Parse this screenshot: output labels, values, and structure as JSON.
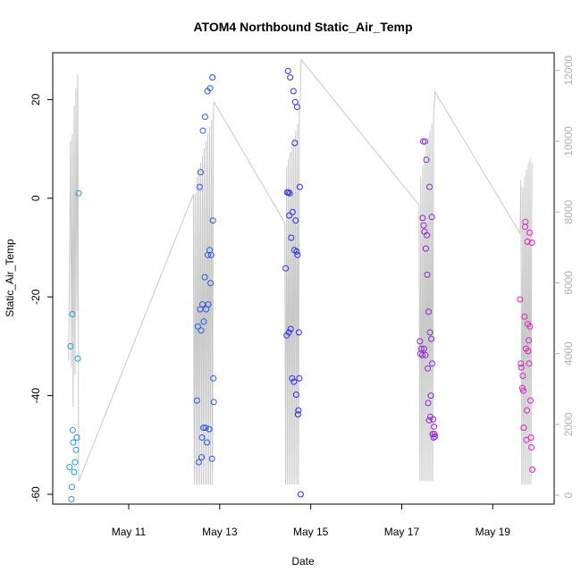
{
  "chart_data": {
    "type": "scatter",
    "title": "ATOM4 Northbound Static_Air_Temp",
    "xlabel": "Date",
    "ylabel": "Static_Air_Temp",
    "x_ticks": [
      {
        "label": "May 11",
        "day": 11
      },
      {
        "label": "May 13",
        "day": 13
      },
      {
        "label": "May 15",
        "day": 15
      },
      {
        "label": "May 17",
        "day": 17
      },
      {
        "label": "May 19",
        "day": 19
      }
    ],
    "xlim": [
      9.33,
      20.35
    ],
    "ylim": [
      -62,
      29.5
    ],
    "y_ticks": [
      -60,
      -40,
      -20,
      0,
      20
    ],
    "y2lim": [
      -250,
      12500
    ],
    "y2_ticks": [
      0,
      2000,
      4000,
      6000,
      8000,
      10000,
      12000
    ],
    "y2_label": "",
    "grid": false,
    "legend": "none",
    "colors": {
      "points_start": "#1e9ee0",
      "points_mid": "#2a2ae8",
      "points_end": "#e020c0",
      "altitude_line": "#c8c8c8",
      "right_axis": "#b0b0b0"
    },
    "series": [
      {
        "type": "scatter",
        "points": [
          [
            9.7,
            -54.5
          ],
          [
            9.72,
            -30.0
          ],
          [
            9.74,
            -61.0
          ],
          [
            9.75,
            -58.5
          ],
          [
            9.76,
            -23.5
          ],
          [
            9.77,
            -47.0
          ],
          [
            9.78,
            -49.5
          ],
          [
            9.8,
            -55.5
          ],
          [
            9.82,
            -53.5
          ],
          [
            9.84,
            -51.0
          ],
          [
            9.86,
            -48.5
          ],
          [
            9.88,
            -32.5
          ],
          [
            9.9,
            1.0
          ],
          [
            12.5,
            -41.0
          ],
          [
            12.52,
            -26.0
          ],
          [
            12.54,
            -53.5
          ],
          [
            12.56,
            2.3
          ],
          [
            12.57,
            -22.5
          ],
          [
            12.58,
            5.3
          ],
          [
            12.59,
            -26.8
          ],
          [
            12.6,
            -52.5
          ],
          [
            12.61,
            -48.5
          ],
          [
            12.62,
            -21.5
          ],
          [
            12.63,
            13.7
          ],
          [
            12.64,
            -46.5
          ],
          [
            12.65,
            -25.0
          ],
          [
            12.67,
            -16.0
          ],
          [
            12.68,
            16.5
          ],
          [
            12.69,
            -46.5
          ],
          [
            12.7,
            -22.5
          ],
          [
            12.72,
            -49.5
          ],
          [
            12.73,
            21.7
          ],
          [
            12.74,
            -11.5
          ],
          [
            12.75,
            -21.5
          ],
          [
            12.77,
            -46.8
          ],
          [
            12.78,
            -10.5
          ],
          [
            12.79,
            22.3
          ],
          [
            12.8,
            -17.2
          ],
          [
            12.81,
            -11.5
          ],
          [
            12.83,
            -52.8
          ],
          [
            12.84,
            24.5
          ],
          [
            12.85,
            -4.5
          ],
          [
            12.86,
            -36.5
          ],
          [
            12.87,
            -41.3
          ],
          [
            14.45,
            -14.2
          ],
          [
            14.47,
            -27.8
          ],
          [
            14.48,
            1.2
          ],
          [
            14.5,
            25.8
          ],
          [
            14.51,
            1.2
          ],
          [
            14.52,
            -27.2
          ],
          [
            14.53,
            -3.5
          ],
          [
            14.54,
            1.0
          ],
          [
            14.55,
            24.5
          ],
          [
            14.56,
            -26.5
          ],
          [
            14.57,
            -8.0
          ],
          [
            14.59,
            -36.5
          ],
          [
            14.6,
            -2.8
          ],
          [
            14.62,
            21.7
          ],
          [
            14.63,
            -37.2
          ],
          [
            14.64,
            -10.5
          ],
          [
            14.65,
            11.2
          ],
          [
            14.66,
            19.5
          ],
          [
            14.67,
            -4.5
          ],
          [
            14.68,
            -39.8
          ],
          [
            14.69,
            -10.8
          ],
          [
            14.7,
            18.5
          ],
          [
            14.71,
            -11.5
          ],
          [
            14.72,
            -43.8
          ],
          [
            14.73,
            -43.0
          ],
          [
            14.74,
            -27.2
          ],
          [
            14.75,
            -36.5
          ],
          [
            14.76,
            2.3
          ],
          [
            14.78,
            -60.0
          ],
          [
            17.4,
            -29.0
          ],
          [
            17.41,
            -31.5
          ],
          [
            17.43,
            -30.5
          ],
          [
            17.45,
            -31.8
          ],
          [
            17.46,
            -4.0
          ],
          [
            17.47,
            11.5
          ],
          [
            17.48,
            -5.5
          ],
          [
            17.49,
            -30.5
          ],
          [
            17.5,
            -6.8
          ],
          [
            17.51,
            11.5
          ],
          [
            17.52,
            -31.8
          ],
          [
            17.53,
            -10.2
          ],
          [
            17.54,
            7.8
          ],
          [
            17.55,
            -7.5
          ],
          [
            17.56,
            -15.5
          ],
          [
            17.57,
            -34.5
          ],
          [
            17.58,
            -41.5
          ],
          [
            17.59,
            -23.0
          ],
          [
            17.6,
            -45.0
          ],
          [
            17.61,
            2.3
          ],
          [
            17.62,
            -27.2
          ],
          [
            17.63,
            -44.3
          ],
          [
            17.64,
            -40.0
          ],
          [
            17.65,
            -28.5
          ],
          [
            17.66,
            -3.8
          ],
          [
            17.67,
            -33.5
          ],
          [
            17.68,
            -47.8
          ],
          [
            17.69,
            -44.8
          ],
          [
            17.7,
            -48.5
          ],
          [
            17.71,
            -46.3
          ],
          [
            17.72,
            -47.8
          ],
          [
            17.73,
            -48.3
          ],
          [
            19.6,
            -20.5
          ],
          [
            19.62,
            -33.5
          ],
          [
            19.63,
            -34.3
          ],
          [
            19.65,
            -38.5
          ],
          [
            19.66,
            -36.0
          ],
          [
            19.67,
            -39.0
          ],
          [
            19.68,
            -46.5
          ],
          [
            19.7,
            -24.0
          ],
          [
            19.71,
            -5.8
          ],
          [
            19.72,
            -4.8
          ],
          [
            19.73,
            -30.5
          ],
          [
            19.74,
            -49.0
          ],
          [
            19.75,
            -43.0
          ],
          [
            19.76,
            -8.8
          ],
          [
            19.77,
            -25.5
          ],
          [
            19.78,
            -31.0
          ],
          [
            19.79,
            -28.8
          ],
          [
            19.8,
            -33.5
          ],
          [
            19.81,
            -7.0
          ],
          [
            19.82,
            -26.0
          ],
          [
            19.83,
            -41.0
          ],
          [
            19.84,
            -48.5
          ],
          [
            19.85,
            -50.5
          ],
          [
            19.86,
            -9.0
          ],
          [
            19.87,
            -55.0
          ]
        ]
      },
      {
        "type": "line",
        "axis": "right",
        "points": [
          [
            9.68,
            3800
          ],
          [
            9.72,
            10000
          ],
          [
            9.74,
            3600
          ],
          [
            9.76,
            10200
          ],
          [
            9.78,
            2500
          ],
          [
            9.8,
            11000
          ],
          [
            9.82,
            3400
          ],
          [
            9.84,
            11500
          ],
          [
            9.86,
            5200
          ],
          [
            9.88,
            11900
          ],
          [
            9.9,
            400
          ],
          [
            12.42,
            8500
          ],
          [
            12.44,
            300
          ],
          [
            12.46,
            8500
          ],
          [
            12.48,
            300
          ],
          [
            12.5,
            9000
          ],
          [
            12.52,
            300
          ],
          [
            12.54,
            9200
          ],
          [
            12.56,
            300
          ],
          [
            12.58,
            9400
          ],
          [
            12.6,
            300
          ],
          [
            12.62,
            9600
          ],
          [
            12.64,
            300
          ],
          [
            12.66,
            9800
          ],
          [
            12.68,
            300
          ],
          [
            12.7,
            10000
          ],
          [
            12.72,
            300
          ],
          [
            12.74,
            10200
          ],
          [
            12.76,
            300
          ],
          [
            12.78,
            10400
          ],
          [
            12.8,
            300
          ],
          [
            12.82,
            10600
          ],
          [
            12.84,
            300
          ],
          [
            12.86,
            10800
          ],
          [
            12.88,
            11100
          ],
          [
            14.43,
            7700
          ],
          [
            14.45,
            300
          ],
          [
            14.47,
            9300
          ],
          [
            14.49,
            300
          ],
          [
            14.51,
            9500
          ],
          [
            14.53,
            300
          ],
          [
            14.55,
            9700
          ],
          [
            14.57,
            300
          ],
          [
            14.59,
            9900
          ],
          [
            14.61,
            300
          ],
          [
            14.63,
            10100
          ],
          [
            14.65,
            300
          ],
          [
            14.67,
            10300
          ],
          [
            14.69,
            300
          ],
          [
            14.71,
            10500
          ],
          [
            14.73,
            300
          ],
          [
            14.75,
            10800
          ],
          [
            14.77,
            11200
          ],
          [
            14.79,
            12300
          ],
          [
            17.38,
            8200
          ],
          [
            17.4,
            400
          ],
          [
            17.42,
            9000
          ],
          [
            17.44,
            400
          ],
          [
            17.46,
            9300
          ],
          [
            17.48,
            400
          ],
          [
            17.5,
            9600
          ],
          [
            17.52,
            400
          ],
          [
            17.54,
            9900
          ],
          [
            17.56,
            400
          ],
          [
            17.58,
            10100
          ],
          [
            17.6,
            400
          ],
          [
            17.62,
            10300
          ],
          [
            17.64,
            400
          ],
          [
            17.66,
            10500
          ],
          [
            17.68,
            400
          ],
          [
            17.7,
            10700
          ],
          [
            17.73,
            11400
          ],
          [
            19.6,
            7400
          ],
          [
            19.62,
            8900
          ],
          [
            19.64,
            300
          ],
          [
            19.66,
            8700
          ],
          [
            19.68,
            300
          ],
          [
            19.7,
            9000
          ],
          [
            19.72,
            300
          ],
          [
            19.74,
            9200
          ],
          [
            19.76,
            300
          ],
          [
            19.78,
            9400
          ],
          [
            19.8,
            300
          ],
          [
            19.82,
            9500
          ],
          [
            19.84,
            300
          ],
          [
            19.86,
            9400
          ]
        ]
      }
    ]
  }
}
